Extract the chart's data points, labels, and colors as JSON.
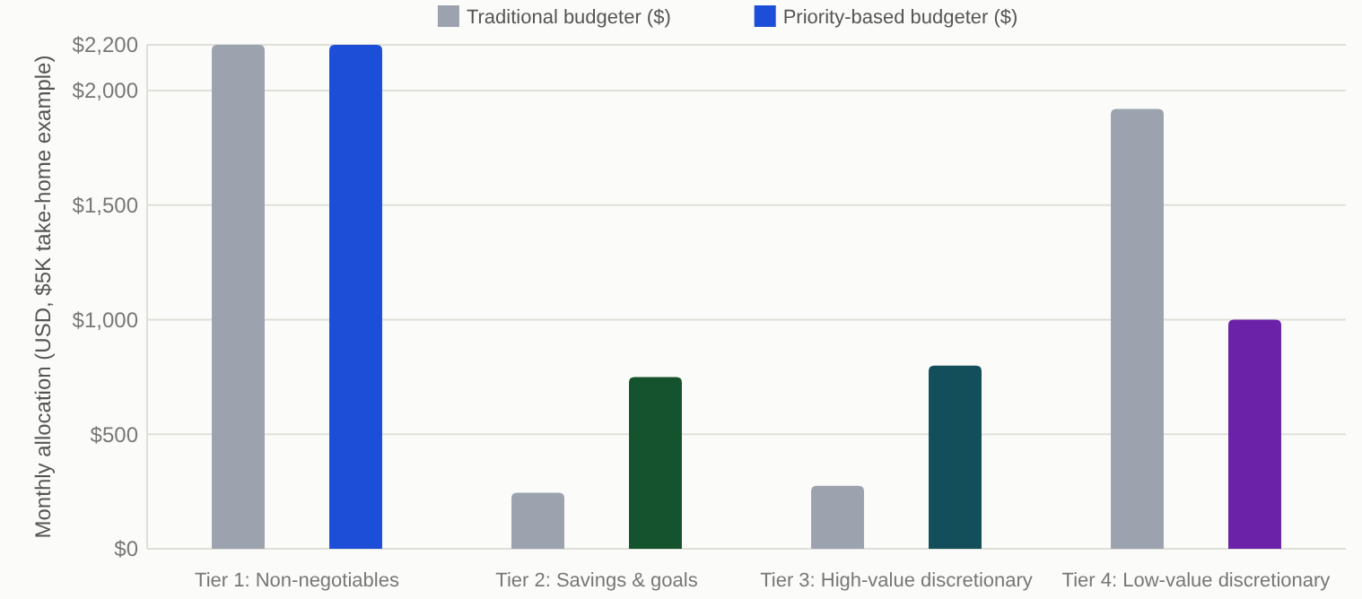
{
  "chart_data": {
    "type": "bar",
    "ylabel": "Monthly allocation (USD, $5K take-home example)",
    "categories": [
      "Tier 1: Non-negotiables",
      "Tier 2: Savings & goals",
      "Tier 3: High-value discretionary",
      "Tier 4: Low-value discretionary"
    ],
    "series": [
      {
        "name": "Traditional budgeter ($)",
        "color": "#9ca3af",
        "values": [
          2200,
          245,
          275,
          1920
        ]
      },
      {
        "name": "Priority-based budgeter ($)",
        "color": "#1d4ed8",
        "colors": [
          "#1d4ed8",
          "#15532e",
          "#134e5b",
          "#6b21a8"
        ],
        "values": [
          2200,
          750,
          800,
          1000
        ]
      }
    ],
    "ylim": [
      0,
      2200
    ],
    "yticks": [
      {
        "value": 0,
        "label": "$0"
      },
      {
        "value": 500,
        "label": "$500"
      },
      {
        "value": 1000,
        "label": "$1,000"
      },
      {
        "value": 1500,
        "label": "$1,500"
      },
      {
        "value": 2000,
        "label": "$2,000"
      },
      {
        "value": 2200,
        "label": "$2,200"
      }
    ],
    "grid": "y",
    "legend": "top"
  }
}
